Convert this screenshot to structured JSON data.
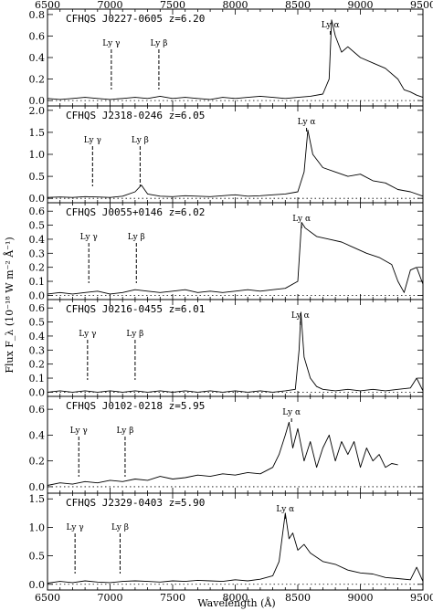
{
  "chart_data": {
    "type": "line",
    "xlabel": "Wavelength (Å)",
    "ylabel": "Flux F_λ (10⁻¹⁸ W m⁻² Å⁻¹)",
    "xlim": [
      6500,
      9500
    ],
    "x_ticks": [
      "6500",
      "7000",
      "7500",
      "8000",
      "8500",
      "9000",
      "9500"
    ],
    "x_tick_values": [
      6500,
      7000,
      7500,
      8000,
      8500,
      9000,
      9500
    ],
    "grid": false,
    "panels": [
      {
        "name": "CFHQS J0227-0605",
        "redshift": "z=6.20",
        "label": "CFHQS J0227-0605  z=6.20",
        "ylim": [
          -0.05,
          0.85
        ],
        "y_ticks": [
          0.0,
          0.2,
          0.4,
          0.6,
          0.8
        ],
        "y_tick_labels": [
          "0.0",
          "0.2",
          "0.4",
          "0.6",
          "0.8"
        ],
        "lines": [
          {
            "name": "Ly γ",
            "x": 7010
          },
          {
            "name": "Ly β",
            "x": 7390
          },
          {
            "name": "Ly α",
            "x": 8760
          }
        ],
        "series": [
          {
            "x": [
              6500,
              6600,
              6700,
              6800,
              6900,
              7000,
              7100,
              7200,
              7300,
              7400,
              7500,
              7600,
              7700,
              7800,
              7900,
              8000,
              8100,
              8200,
              8300,
              8400,
              8500,
              8600,
              8700,
              8750,
              8770,
              8800,
              8850,
              8900,
              9000,
              9100,
              9200,
              9300,
              9350,
              9400,
              9450,
              9500
            ],
            "y": [
              0.02,
              0.01,
              0.02,
              0.03,
              0.02,
              0.01,
              0.02,
              0.03,
              0.02,
              0.04,
              0.02,
              0.03,
              0.02,
              0.01,
              0.03,
              0.02,
              0.03,
              0.04,
              0.03,
              0.02,
              0.03,
              0.04,
              0.06,
              0.2,
              0.75,
              0.6,
              0.45,
              0.5,
              0.4,
              0.35,
              0.3,
              0.2,
              0.1,
              0.08,
              0.05,
              0.03
            ]
          }
        ]
      },
      {
        "name": "CFHQS J2318-0246",
        "redshift": "z=6.05",
        "label": "CFHQS J2318-0246  z=6.05",
        "ylim": [
          -0.1,
          2.1
        ],
        "y_ticks": [
          0.0,
          0.5,
          1.0,
          1.5,
          2.0
        ],
        "y_tick_labels": [
          "0.0",
          "0.5",
          "1.0",
          "1.5",
          "2.0"
        ],
        "lines": [
          {
            "name": "Ly γ",
            "x": 6860
          },
          {
            "name": "Ly β",
            "x": 7240
          },
          {
            "name": "Ly α",
            "x": 8570
          }
        ],
        "series": [
          {
            "x": [
              6500,
              6600,
              6700,
              6800,
              6900,
              7000,
              7100,
              7200,
              7250,
              7300,
              7400,
              7500,
              7600,
              7700,
              7800,
              7900,
              8000,
              8100,
              8200,
              8300,
              8400,
              8500,
              8550,
              8580,
              8620,
              8700,
              8800,
              8900,
              9000,
              9100,
              9200,
              9300,
              9400,
              9500
            ],
            "y": [
              0.02,
              0.03,
              0.02,
              0.04,
              0.03,
              0.02,
              0.05,
              0.15,
              0.3,
              0.1,
              0.05,
              0.04,
              0.06,
              0.05,
              0.04,
              0.06,
              0.08,
              0.05,
              0.06,
              0.08,
              0.1,
              0.15,
              0.6,
              1.55,
              1.0,
              0.7,
              0.6,
              0.5,
              0.55,
              0.4,
              0.35,
              0.2,
              0.15,
              0.05
            ]
          }
        ]
      },
      {
        "name": "CFHQS J0055+0146",
        "redshift": "z=6.02",
        "label": "CFHQS J0055+0146  z=6.02",
        "ylim": [
          -0.03,
          0.66
        ],
        "y_ticks": [
          0.0,
          0.1,
          0.2,
          0.3,
          0.4,
          0.5,
          0.6
        ],
        "y_tick_labels": [
          "0.0",
          "0.1",
          "0.2",
          "0.3",
          "0.4",
          "0.5",
          "0.6"
        ],
        "lines": [
          {
            "name": "Ly γ",
            "x": 6830
          },
          {
            "name": "Ly β",
            "x": 7210
          },
          {
            "name": "Ly α",
            "x": 8530
          }
        ],
        "series": [
          {
            "x": [
              6500,
              6600,
              6700,
              6800,
              6900,
              7000,
              7100,
              7200,
              7300,
              7400,
              7500,
              7600,
              7700,
              7800,
              7900,
              8000,
              8100,
              8200,
              8300,
              8400,
              8500,
              8530,
              8560,
              8650,
              8750,
              8850,
              8950,
              9050,
              9150,
              9250,
              9300,
              9350,
              9400,
              9450,
              9500
            ],
            "y": [
              0.01,
              0.02,
              0.01,
              0.02,
              0.03,
              0.01,
              0.02,
              0.04,
              0.03,
              0.02,
              0.03,
              0.04,
              0.02,
              0.03,
              0.02,
              0.03,
              0.04,
              0.03,
              0.04,
              0.05,
              0.1,
              0.52,
              0.48,
              0.42,
              0.4,
              0.38,
              0.34,
              0.3,
              0.27,
              0.22,
              0.1,
              0.02,
              0.18,
              0.2,
              0.08
            ]
          }
        ]
      },
      {
        "name": "CFHQS J0216-0455",
        "redshift": "z=6.01",
        "label": "CFHQS J0216-0455  z=6.01",
        "ylim": [
          -0.03,
          0.66
        ],
        "y_ticks": [
          0.0,
          0.1,
          0.2,
          0.3,
          0.4,
          0.5,
          0.6
        ],
        "y_tick_labels": [
          "0.0",
          "0.1",
          "0.2",
          "0.3",
          "0.4",
          "0.5",
          "0.6"
        ],
        "lines": [
          {
            "name": "Ly γ",
            "x": 6820
          },
          {
            "name": "Ly β",
            "x": 7200
          },
          {
            "name": "Ly α",
            "x": 8520
          }
        ],
        "series": [
          {
            "x": [
              6500,
              6600,
              6700,
              6800,
              6900,
              7000,
              7100,
              7200,
              7300,
              7400,
              7500,
              7600,
              7700,
              7800,
              7900,
              8000,
              8100,
              8200,
              8300,
              8400,
              8480,
              8510,
              8525,
              8550,
              8600,
              8650,
              8700,
              8800,
              8900,
              9000,
              9100,
              9200,
              9300,
              9400,
              9450,
              9500
            ],
            "y": [
              0.0,
              0.01,
              0.0,
              0.01,
              0.0,
              0.01,
              0.0,
              0.01,
              0.0,
              0.01,
              0.0,
              0.01,
              0.0,
              0.01,
              0.0,
              0.01,
              0.0,
              0.01,
              0.0,
              0.01,
              0.02,
              0.3,
              0.57,
              0.25,
              0.1,
              0.04,
              0.02,
              0.01,
              0.02,
              0.01,
              0.02,
              0.01,
              0.02,
              0.03,
              0.1,
              0.01
            ]
          }
        ]
      },
      {
        "name": "CFHQS J0102-0218",
        "redshift": "z=5.95",
        "label": "CFHQS J0102-0218  z=5.95",
        "ylim": [
          -0.05,
          0.7
        ],
        "y_ticks": [
          0.0,
          0.2,
          0.4,
          0.6
        ],
        "y_tick_labels": [
          "0.0",
          "0.2",
          "0.4",
          "0.6"
        ],
        "lines": [
          {
            "name": "Ly γ",
            "x": 6750
          },
          {
            "name": "Ly β",
            "x": 7120
          },
          {
            "name": "Ly α",
            "x": 8450
          }
        ],
        "series": [
          {
            "x": [
              6500,
              6600,
              6700,
              6800,
              6900,
              7000,
              7100,
              7200,
              7300,
              7400,
              7500,
              7600,
              7700,
              7800,
              7900,
              8000,
              8100,
              8200,
              8300,
              8350,
              8400,
              8430,
              8460,
              8500,
              8550,
              8600,
              8650,
              8700,
              8750,
              8800,
              8850,
              8900,
              8950,
              9000,
              9050,
              9100,
              9150,
              9200,
              9250,
              9300
            ],
            "y": [
              0.01,
              0.03,
              0.02,
              0.04,
              0.03,
              0.05,
              0.04,
              0.06,
              0.05,
              0.08,
              0.06,
              0.07,
              0.09,
              0.08,
              0.1,
              0.09,
              0.11,
              0.1,
              0.15,
              0.25,
              0.4,
              0.5,
              0.3,
              0.45,
              0.2,
              0.35,
              0.15,
              0.3,
              0.4,
              0.2,
              0.35,
              0.25,
              0.35,
              0.15,
              0.3,
              0.2,
              0.25,
              0.15,
              0.18,
              0.17
            ]
          }
        ]
      },
      {
        "name": "CFHQS J2329-0403",
        "redshift": "z=5.90",
        "label": "CFHQS J2329-0403  z=5.90",
        "ylim": [
          -0.1,
          1.6
        ],
        "y_ticks": [
          0.0,
          0.5,
          1.0,
          1.5
        ],
        "y_tick_labels": [
          "0.0",
          "0.5",
          "1.0",
          "1.5"
        ],
        "lines": [
          {
            "name": "Ly γ",
            "x": 6720
          },
          {
            "name": "Ly β",
            "x": 7080
          },
          {
            "name": "Ly α",
            "x": 8400
          }
        ],
        "series": [
          {
            "x": [
              6500,
              6600,
              6700,
              6800,
              6900,
              7000,
              7100,
              7200,
              7300,
              7400,
              7500,
              7600,
              7700,
              7800,
              7900,
              8000,
              8100,
              8200,
              8300,
              8350,
              8400,
              8430,
              8460,
              8500,
              8550,
              8600,
              8700,
              8800,
              8900,
              9000,
              9100,
              9200,
              9300,
              9400,
              9450,
              9500
            ],
            "y": [
              0.02,
              0.05,
              0.03,
              0.06,
              0.04,
              0.03,
              0.05,
              0.06,
              0.05,
              0.04,
              0.06,
              0.05,
              0.07,
              0.06,
              0.05,
              0.08,
              0.06,
              0.09,
              0.15,
              0.4,
              1.25,
              0.8,
              0.9,
              0.6,
              0.7,
              0.55,
              0.4,
              0.35,
              0.25,
              0.2,
              0.18,
              0.12,
              0.1,
              0.08,
              0.3,
              0.05
            ]
          }
        ]
      }
    ]
  }
}
